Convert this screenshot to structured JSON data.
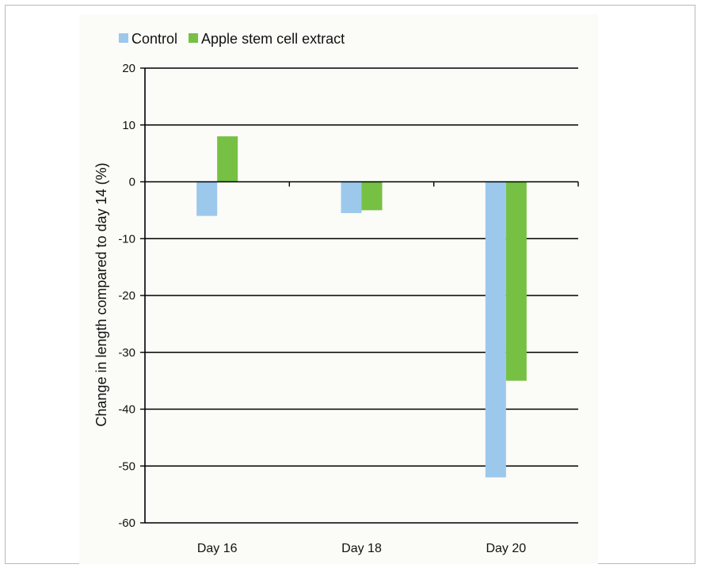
{
  "chart_data": {
    "type": "bar",
    "categories": [
      "Day 16",
      "Day 18",
      "Day 20"
    ],
    "series": [
      {
        "name": "Control",
        "values": [
          -6,
          -5.5,
          -52
        ],
        "color": "#9cc8ec"
      },
      {
        "name": "Apple stem cell extract",
        "values": [
          8,
          -5,
          -35
        ],
        "color": "#76c043"
      }
    ],
    "title": "",
    "xlabel": "",
    "ylabel": "Change in length compared to day 14 (%)",
    "ylim": [
      -60,
      20
    ],
    "yticks": [
      20,
      10,
      0,
      -10,
      -20,
      -30,
      -40,
      -50,
      -60
    ],
    "grid": true,
    "legend_position": "top-left"
  }
}
